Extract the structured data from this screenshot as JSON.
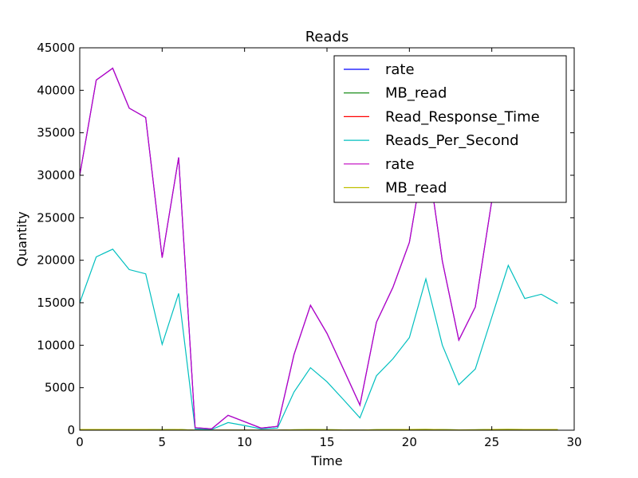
{
  "chart_data": {
    "type": "line",
    "title": "Reads",
    "xlabel": "Time",
    "ylabel": "Quantity",
    "xlim": [
      0,
      30
    ],
    "ylim": [
      0,
      45000
    ],
    "xticks": [
      0,
      5,
      10,
      15,
      20,
      25,
      30
    ],
    "yticks": [
      0,
      5000,
      10000,
      15000,
      20000,
      25000,
      30000,
      35000,
      40000,
      45000
    ],
    "grid": false,
    "legend_position": "top-right",
    "x": [
      0,
      1,
      2,
      3,
      4,
      5,
      6,
      7,
      8,
      9,
      10,
      11,
      12,
      13,
      14,
      15,
      16,
      17,
      18,
      19,
      20,
      21,
      22,
      23,
      24,
      25,
      26,
      27,
      28,
      29
    ],
    "series": [
      {
        "name": "rate",
        "color": "#0000ff",
        "values": [
          30000,
          41200,
          42600,
          37900,
          36800,
          20300,
          32100,
          300,
          150,
          1750,
          1000,
          250,
          450,
          8900,
          14700,
          11400,
          7200,
          2950,
          12700,
          16800,
          22100,
          33500,
          19900,
          10600,
          14500,
          27000,
          37000,
          33500,
          31000,
          30000
        ]
      },
      {
        "name": "MB_read",
        "color": "#008000",
        "values": [
          80,
          90,
          90,
          85,
          85,
          60,
          80,
          5,
          5,
          20,
          10,
          5,
          5,
          50,
          70,
          60,
          40,
          20,
          60,
          70,
          90,
          100,
          70,
          40,
          50,
          80,
          100,
          90,
          85,
          80
        ]
      },
      {
        "name": "Read_Response_Time",
        "color": "#ff0000",
        "values": [
          5,
          5,
          5,
          5,
          5,
          5,
          5,
          5,
          5,
          5,
          5,
          5,
          5,
          5,
          5,
          5,
          5,
          5,
          5,
          5,
          5,
          5,
          5,
          5,
          5,
          5,
          5,
          5,
          5,
          5
        ]
      },
      {
        "name": "Reads_Per_Second",
        "color": "#00bfbf",
        "values": [
          15000,
          20400,
          21300,
          18900,
          18400,
          10100,
          16100,
          150,
          80,
          900,
          550,
          150,
          250,
          4500,
          7350,
          5700,
          3600,
          1450,
          6400,
          8400,
          10900,
          17800,
          10000,
          5350,
          7200,
          13300,
          19400,
          15500,
          16000,
          14900
        ]
      },
      {
        "name": "rate",
        "color": "#bf00bf",
        "values": [
          30000,
          41200,
          42600,
          37900,
          36800,
          20300,
          32100,
          300,
          150,
          1750,
          1000,
          250,
          450,
          8900,
          14700,
          11400,
          7200,
          2950,
          12700,
          16800,
          22100,
          33500,
          19900,
          10600,
          14500,
          27000,
          37000,
          33500,
          31000,
          30000
        ]
      },
      {
        "name": "MB_read",
        "color": "#bfbf00",
        "values": [
          80,
          90,
          90,
          85,
          85,
          60,
          80,
          5,
          5,
          20,
          10,
          5,
          5,
          50,
          70,
          60,
          40,
          20,
          60,
          70,
          90,
          100,
          70,
          40,
          50,
          80,
          100,
          90,
          85,
          80
        ]
      }
    ]
  }
}
